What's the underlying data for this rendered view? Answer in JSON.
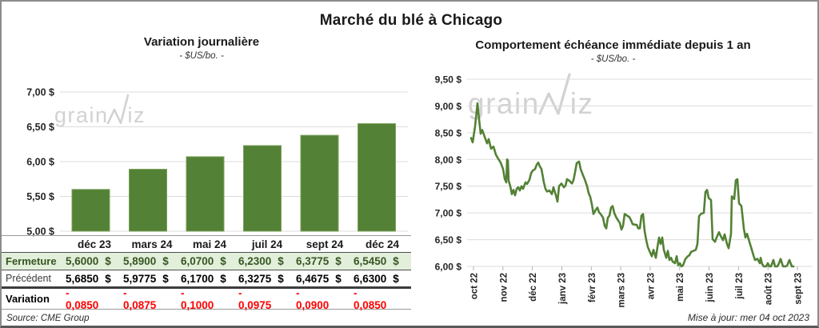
{
  "page": {
    "title": "Marché du blé à Chicago",
    "source_note": "Source: CME Group",
    "update_note": "Mise à jour: mer 04 oct 2023",
    "watermark": {
      "prefix": "grain",
      "suffix": "iz"
    }
  },
  "colors": {
    "green": "#538135",
    "green_edge": "#7ba05b",
    "light_green_row": "#e2efda",
    "dark_green_text": "#375623",
    "negative_red": "#ff0000",
    "gridline": "#dcdcdc",
    "watermark": "#d2d2d2",
    "axis_text": "#262626"
  },
  "left_chart": {
    "title": "Variation journalière",
    "subtitle": "- $US/bo. -",
    "y_ticks": [
      "7,00 $",
      "6,50 $",
      "6,00 $",
      "5,50 $",
      "5,00 $"
    ]
  },
  "right_chart": {
    "title": "Comportement échéance immédiate depuis 1 an",
    "subtitle": "- $US/bo. -",
    "y_ticks": [
      "9,50 $",
      "9,00 $",
      "8,50 $",
      "8,00 $",
      "7,50 $",
      "7,00 $",
      "6,50 $",
      "6,00 $"
    ],
    "x_ticks": [
      "oct 22",
      "nov 22",
      "déc 22",
      "janv 23",
      "févr 23",
      "mars 23",
      "avr 23",
      "mai 23",
      "juin 23",
      "juil 23",
      "août 23",
      "sept 23"
    ]
  },
  "table": {
    "columns": [
      "déc 23",
      "mars 24",
      "mai 24",
      "juil 24",
      "sept 24",
      "déc 24"
    ],
    "currency": "$",
    "rows": [
      {
        "label": "Fermeture",
        "style": "fermeture",
        "currency": true,
        "values": [
          "5,6000",
          "5,8900",
          "6,0700",
          "6,2300",
          "6,3775",
          "6,5450"
        ]
      },
      {
        "label": "Précédent",
        "style": "precedent",
        "currency": true,
        "values": [
          "5,6850",
          "5,9775",
          "6,1700",
          "6,3275",
          "6,4675",
          "6,6300"
        ]
      },
      {
        "label": "Variation",
        "style": "variation",
        "currency": false,
        "values": [
          "- 0,0850",
          "- 0,0875",
          "- 0,1000",
          "- 0,0975",
          "- 0,0900",
          "- 0,0850"
        ]
      }
    ]
  },
  "chart_data": [
    {
      "type": "bar",
      "title": "Variation journalière",
      "ylabel": "$US/bo.",
      "categories": [
        "déc 23",
        "mars 24",
        "mai 24",
        "juil 24",
        "sept 24",
        "déc 24"
      ],
      "values": [
        5.6,
        5.89,
        6.07,
        6.23,
        6.3775,
        6.545
      ],
      "ylim": [
        5.0,
        7.0
      ],
      "ytick_step": 0.5,
      "grid": true,
      "legend": "none"
    },
    {
      "type": "line",
      "title": "Comportement échéance immédiate depuis 1 an",
      "ylabel": "$US/bo.",
      "x_months": [
        "oct 22",
        "nov 22",
        "déc 22",
        "janv 23",
        "févr 23",
        "mars 23",
        "avr 23",
        "mai 23",
        "juin 23",
        "juil 23",
        "août 23",
        "sept 23"
      ],
      "ylim": [
        6.0,
        9.5
      ],
      "ytick_step": 0.5,
      "grid": true,
      "legend": "none",
      "points": [
        [
          75,
          8.4
        ],
        [
          77,
          8.32
        ],
        [
          80,
          8.62
        ],
        [
          83,
          9.05
        ],
        [
          85,
          8.75
        ],
        [
          87,
          8.48
        ],
        [
          89,
          8.55
        ],
        [
          92,
          8.42
        ],
        [
          95,
          8.3
        ],
        [
          97,
          8.38
        ],
        [
          100,
          8.2
        ],
        [
          103,
          8.24
        ],
        [
          106,
          8.09
        ],
        [
          109,
          8.01
        ],
        [
          112,
          7.94
        ],
        [
          115,
          7.82
        ],
        [
          117,
          7.64
        ],
        [
          119,
          7.57
        ],
        [
          120,
          8.0
        ],
        [
          121,
          7.98
        ],
        [
          122,
          7.6
        ],
        [
          124,
          7.5
        ],
        [
          126,
          7.35
        ],
        [
          128,
          7.43
        ],
        [
          130,
          7.33
        ],
        [
          132,
          7.45
        ],
        [
          134,
          7.48
        ],
        [
          136,
          7.42
        ],
        [
          138,
          7.5
        ],
        [
          140,
          7.45
        ],
        [
          143,
          7.57
        ],
        [
          145,
          7.54
        ],
        [
          148,
          7.62
        ],
        [
          150,
          7.74
        ],
        [
          152,
          7.79
        ],
        [
          155,
          7.82
        ],
        [
          157,
          7.9
        ],
        [
          159,
          7.94
        ],
        [
          161,
          7.87
        ],
        [
          163,
          7.82
        ],
        [
          166,
          7.57
        ],
        [
          168,
          7.45
        ],
        [
          170,
          7.4
        ],
        [
          173,
          7.42
        ],
        [
          176,
          7.35
        ],
        [
          178,
          7.48
        ],
        [
          181,
          7.33
        ],
        [
          183,
          7.21
        ],
        [
          185,
          7.5
        ],
        [
          188,
          7.55
        ],
        [
          191,
          7.48
        ],
        [
          193,
          7.51
        ],
        [
          195,
          7.63
        ],
        [
          198,
          7.6
        ],
        [
          201,
          7.55
        ],
        [
          203,
          7.61
        ],
        [
          205,
          7.76
        ],
        [
          207,
          7.93
        ],
        [
          210,
          7.96
        ],
        [
          212,
          7.82
        ],
        [
          215,
          7.7
        ],
        [
          217,
          7.63
        ],
        [
          220,
          7.5
        ],
        [
          222,
          7.37
        ],
        [
          224,
          7.3
        ],
        [
          226,
          7.16
        ],
        [
          228,
          6.98
        ],
        [
          231,
          7.06
        ],
        [
          233,
          7.1
        ],
        [
          235,
          7.01
        ],
        [
          237,
          6.98
        ],
        [
          240,
          6.91
        ],
        [
          242,
          6.76
        ],
        [
          244,
          6.71
        ],
        [
          246,
          6.91
        ],
        [
          248,
          6.95
        ],
        [
          250,
          7.1
        ],
        [
          252,
          7.13
        ],
        [
          254,
          7.0
        ],
        [
          256,
          6.93
        ],
        [
          258,
          6.88
        ],
        [
          261,
          6.81
        ],
        [
          263,
          6.69
        ],
        [
          265,
          6.76
        ],
        [
          267,
          6.98
        ],
        [
          270,
          6.95
        ],
        [
          273,
          6.92
        ],
        [
          275,
          6.86
        ],
        [
          277,
          6.79
        ],
        [
          280,
          6.78
        ],
        [
          282,
          6.78
        ],
        [
          284,
          6.71
        ],
        [
          286,
          6.71
        ],
        [
          288,
          6.95
        ],
        [
          290,
          6.98
        ],
        [
          292,
          6.66
        ],
        [
          294,
          6.49
        ],
        [
          296,
          6.36
        ],
        [
          298,
          6.29
        ],
        [
          301,
          6.19
        ],
        [
          303,
          6.31
        ],
        [
          306,
          6.16
        ],
        [
          308,
          6.36
        ],
        [
          310,
          6.54
        ],
        [
          312,
          6.42
        ],
        [
          314,
          6.54
        ],
        [
          316,
          6.31
        ],
        [
          319,
          6.16
        ],
        [
          321,
          6.29
        ],
        [
          323,
          6.12
        ],
        [
          325,
          6.16
        ],
        [
          327,
          6.09
        ],
        [
          330,
          6.06
        ],
        [
          332,
          6.19
        ],
        [
          334,
          6.02
        ],
        [
          336,
          6.06
        ],
        [
          338,
          6.0
        ],
        [
          340,
          6.02
        ],
        [
          343,
          6.14
        ],
        [
          346,
          6.19
        ],
        [
          348,
          6.21
        ],
        [
          350,
          6.27
        ],
        [
          353,
          6.29
        ],
        [
          356,
          6.31
        ],
        [
          358,
          6.42
        ],
        [
          360,
          6.94
        ],
        [
          363,
          6.99
        ],
        [
          366,
          7.0
        ],
        [
          368,
          7.39
        ],
        [
          370,
          7.43
        ],
        [
          372,
          7.28
        ],
        [
          375,
          7.24
        ],
        [
          377,
          6.51
        ],
        [
          380,
          6.46
        ],
        [
          382,
          6.54
        ],
        [
          385,
          6.64
        ],
        [
          387,
          6.57
        ],
        [
          390,
          6.49
        ],
        [
          392,
          6.6
        ],
        [
          395,
          6.42
        ],
        [
          397,
          6.34
        ],
        [
          400,
          6.61
        ],
        [
          401,
          7.31
        ],
        [
          404,
          7.26
        ],
        [
          406,
          7.61
        ],
        [
          408,
          7.63
        ],
        [
          410,
          7.18
        ],
        [
          413,
          7.13
        ],
        [
          416,
          6.71
        ],
        [
          418,
          6.54
        ],
        [
          420,
          6.61
        ],
        [
          423,
          6.46
        ],
        [
          426,
          6.31
        ],
        [
          428,
          6.21
        ],
        [
          430,
          6.12
        ],
        [
          433,
          6.14
        ],
        [
          436,
          6.06
        ],
        [
          437,
          6.16
        ],
        [
          439,
          6.04
        ],
        [
          441,
          6.0
        ],
        [
          444,
          6.0
        ],
        [
          446,
          6.06
        ],
        [
          448,
          6.0
        ],
        [
          450,
          6.0
        ],
        [
          453,
          6.12
        ],
        [
          455,
          6.0
        ],
        [
          458,
          6.0
        ],
        [
          460,
          6.06
        ],
        [
          462,
          6.14
        ],
        [
          465,
          6.0
        ],
        [
          468,
          6.0
        ],
        [
          470,
          6.01
        ],
        [
          473,
          6.12
        ],
        [
          476,
          6.0
        ],
        [
          478,
          6.0
        ]
      ]
    }
  ]
}
